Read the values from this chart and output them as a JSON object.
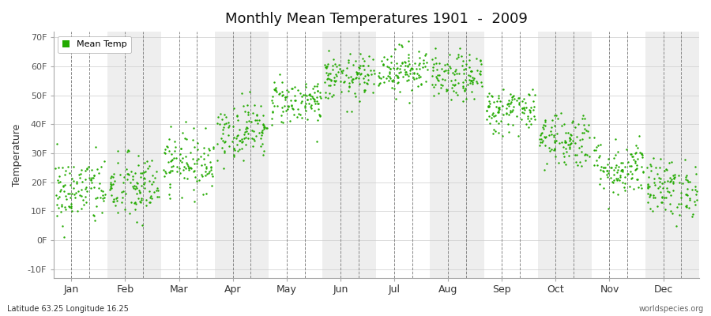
{
  "title": "Monthly Mean Temperatures 1901  -  2009",
  "ylabel": "Temperature",
  "footer_left": "Latitude 63.25 Longitude 16.25",
  "footer_right": "worldspecies.org",
  "legend_label": "Mean Temp",
  "dot_color": "#22AA00",
  "background_color": "#FFFFFF",
  "band_color": "#EEEEEE",
  "ylim": [
    -13,
    72
  ],
  "yticks": [
    -10,
    0,
    10,
    20,
    30,
    40,
    50,
    60,
    70
  ],
  "ytick_labels": [
    "-10F",
    "0F",
    "10F",
    "20F",
    "30F",
    "40F",
    "50F",
    "60F",
    "70F"
  ],
  "months": [
    "Jan",
    "Feb",
    "Mar",
    "Apr",
    "May",
    "Jun",
    "Jul",
    "Aug",
    "Sep",
    "Oct",
    "Nov",
    "Dec"
  ],
  "mean_temps_f": [
    17,
    18,
    27,
    38,
    48,
    56,
    59,
    56,
    45,
    35,
    25,
    18
  ],
  "std_temps_f": [
    6,
    6,
    5,
    5,
    4,
    4,
    4,
    4,
    4,
    5,
    5,
    5
  ],
  "n_years": 109,
  "dot_size": 3
}
